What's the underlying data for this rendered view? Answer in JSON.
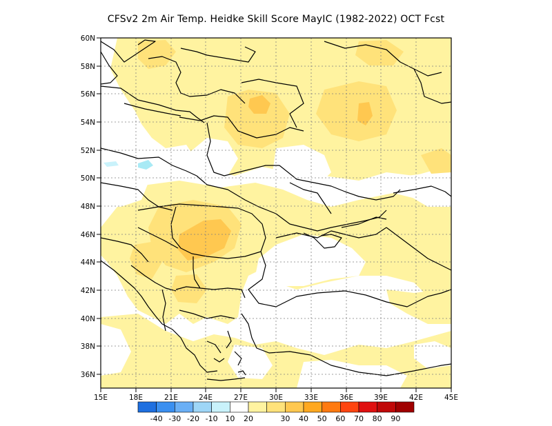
{
  "title": "CFSv2  2m Air Temp. Heidke Skill Score MayIC (1982-2022) OCT Fcst",
  "map": {
    "lat_ticks": [
      "60N",
      "58N",
      "56N",
      "54N",
      "52N",
      "50N",
      "48N",
      "46N",
      "44N",
      "42N",
      "40N",
      "38N",
      "36N"
    ],
    "lon_ticks": [
      "15E",
      "18E",
      "21E",
      "24E",
      "27E",
      "30E",
      "33E",
      "36E",
      "39E",
      "42E",
      "45E"
    ],
    "extent": {
      "lon_min": 15,
      "lon_max": 45,
      "lat_min": 35,
      "lat_max": 60
    }
  },
  "colorbar": {
    "colors": [
      "#1e6fe0",
      "#3a8ff0",
      "#6aaff5",
      "#9ed6f7",
      "#c9f2fb",
      "#ffffff",
      "#fff3a0",
      "#ffe27a",
      "#ffc850",
      "#ffa820",
      "#ff7a10",
      "#ff4510",
      "#e01010",
      "#c00808",
      "#a00000"
    ],
    "labels": [
      "-40",
      "-30",
      "-20",
      "-10",
      "10",
      "20",
      "30",
      "40",
      "50",
      "60",
      "70",
      "80",
      "90"
    ]
  },
  "colors": {
    "level_10_20": "#fff3a0",
    "level_20_30": "#ffe27a",
    "level_30_40": "#ffc850",
    "level_neg_10": "#a8eaf5",
    "grid": "#7f7f7f",
    "coast": "#000000"
  }
}
